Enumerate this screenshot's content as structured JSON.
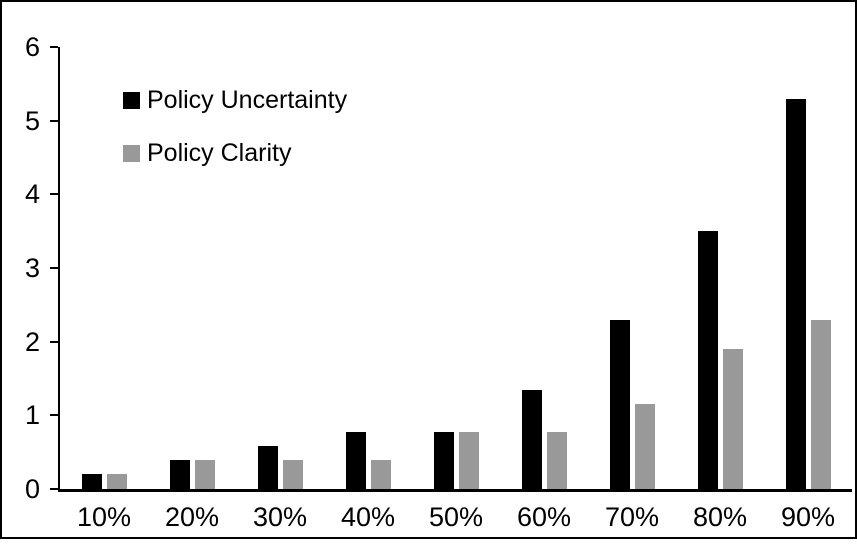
{
  "window": {
    "background": "#ffffff",
    "frame_color": "#000000"
  },
  "chart_data": {
    "type": "bar",
    "title": "",
    "xlabel": "",
    "ylabel": "",
    "categories": [
      "10%",
      "20%",
      "30%",
      "40%",
      "50%",
      "60%",
      "70%",
      "80%",
      "90%"
    ],
    "series": [
      {
        "name": "Policy Uncertainty",
        "color": "#000000",
        "values": [
          0.2,
          0.4,
          0.58,
          0.77,
          0.78,
          1.35,
          2.3,
          3.5,
          5.3
        ]
      },
      {
        "name": "Policy Clarity",
        "color": "#999999",
        "values": [
          0.2,
          0.4,
          0.4,
          0.4,
          0.77,
          0.78,
          1.15,
          1.9,
          2.3
        ]
      }
    ],
    "ylim": [
      0,
      6
    ],
    "yticks": [
      0,
      1,
      2,
      3,
      4,
      5,
      6
    ],
    "grid": false,
    "legend_position": "top-left-inside"
  }
}
